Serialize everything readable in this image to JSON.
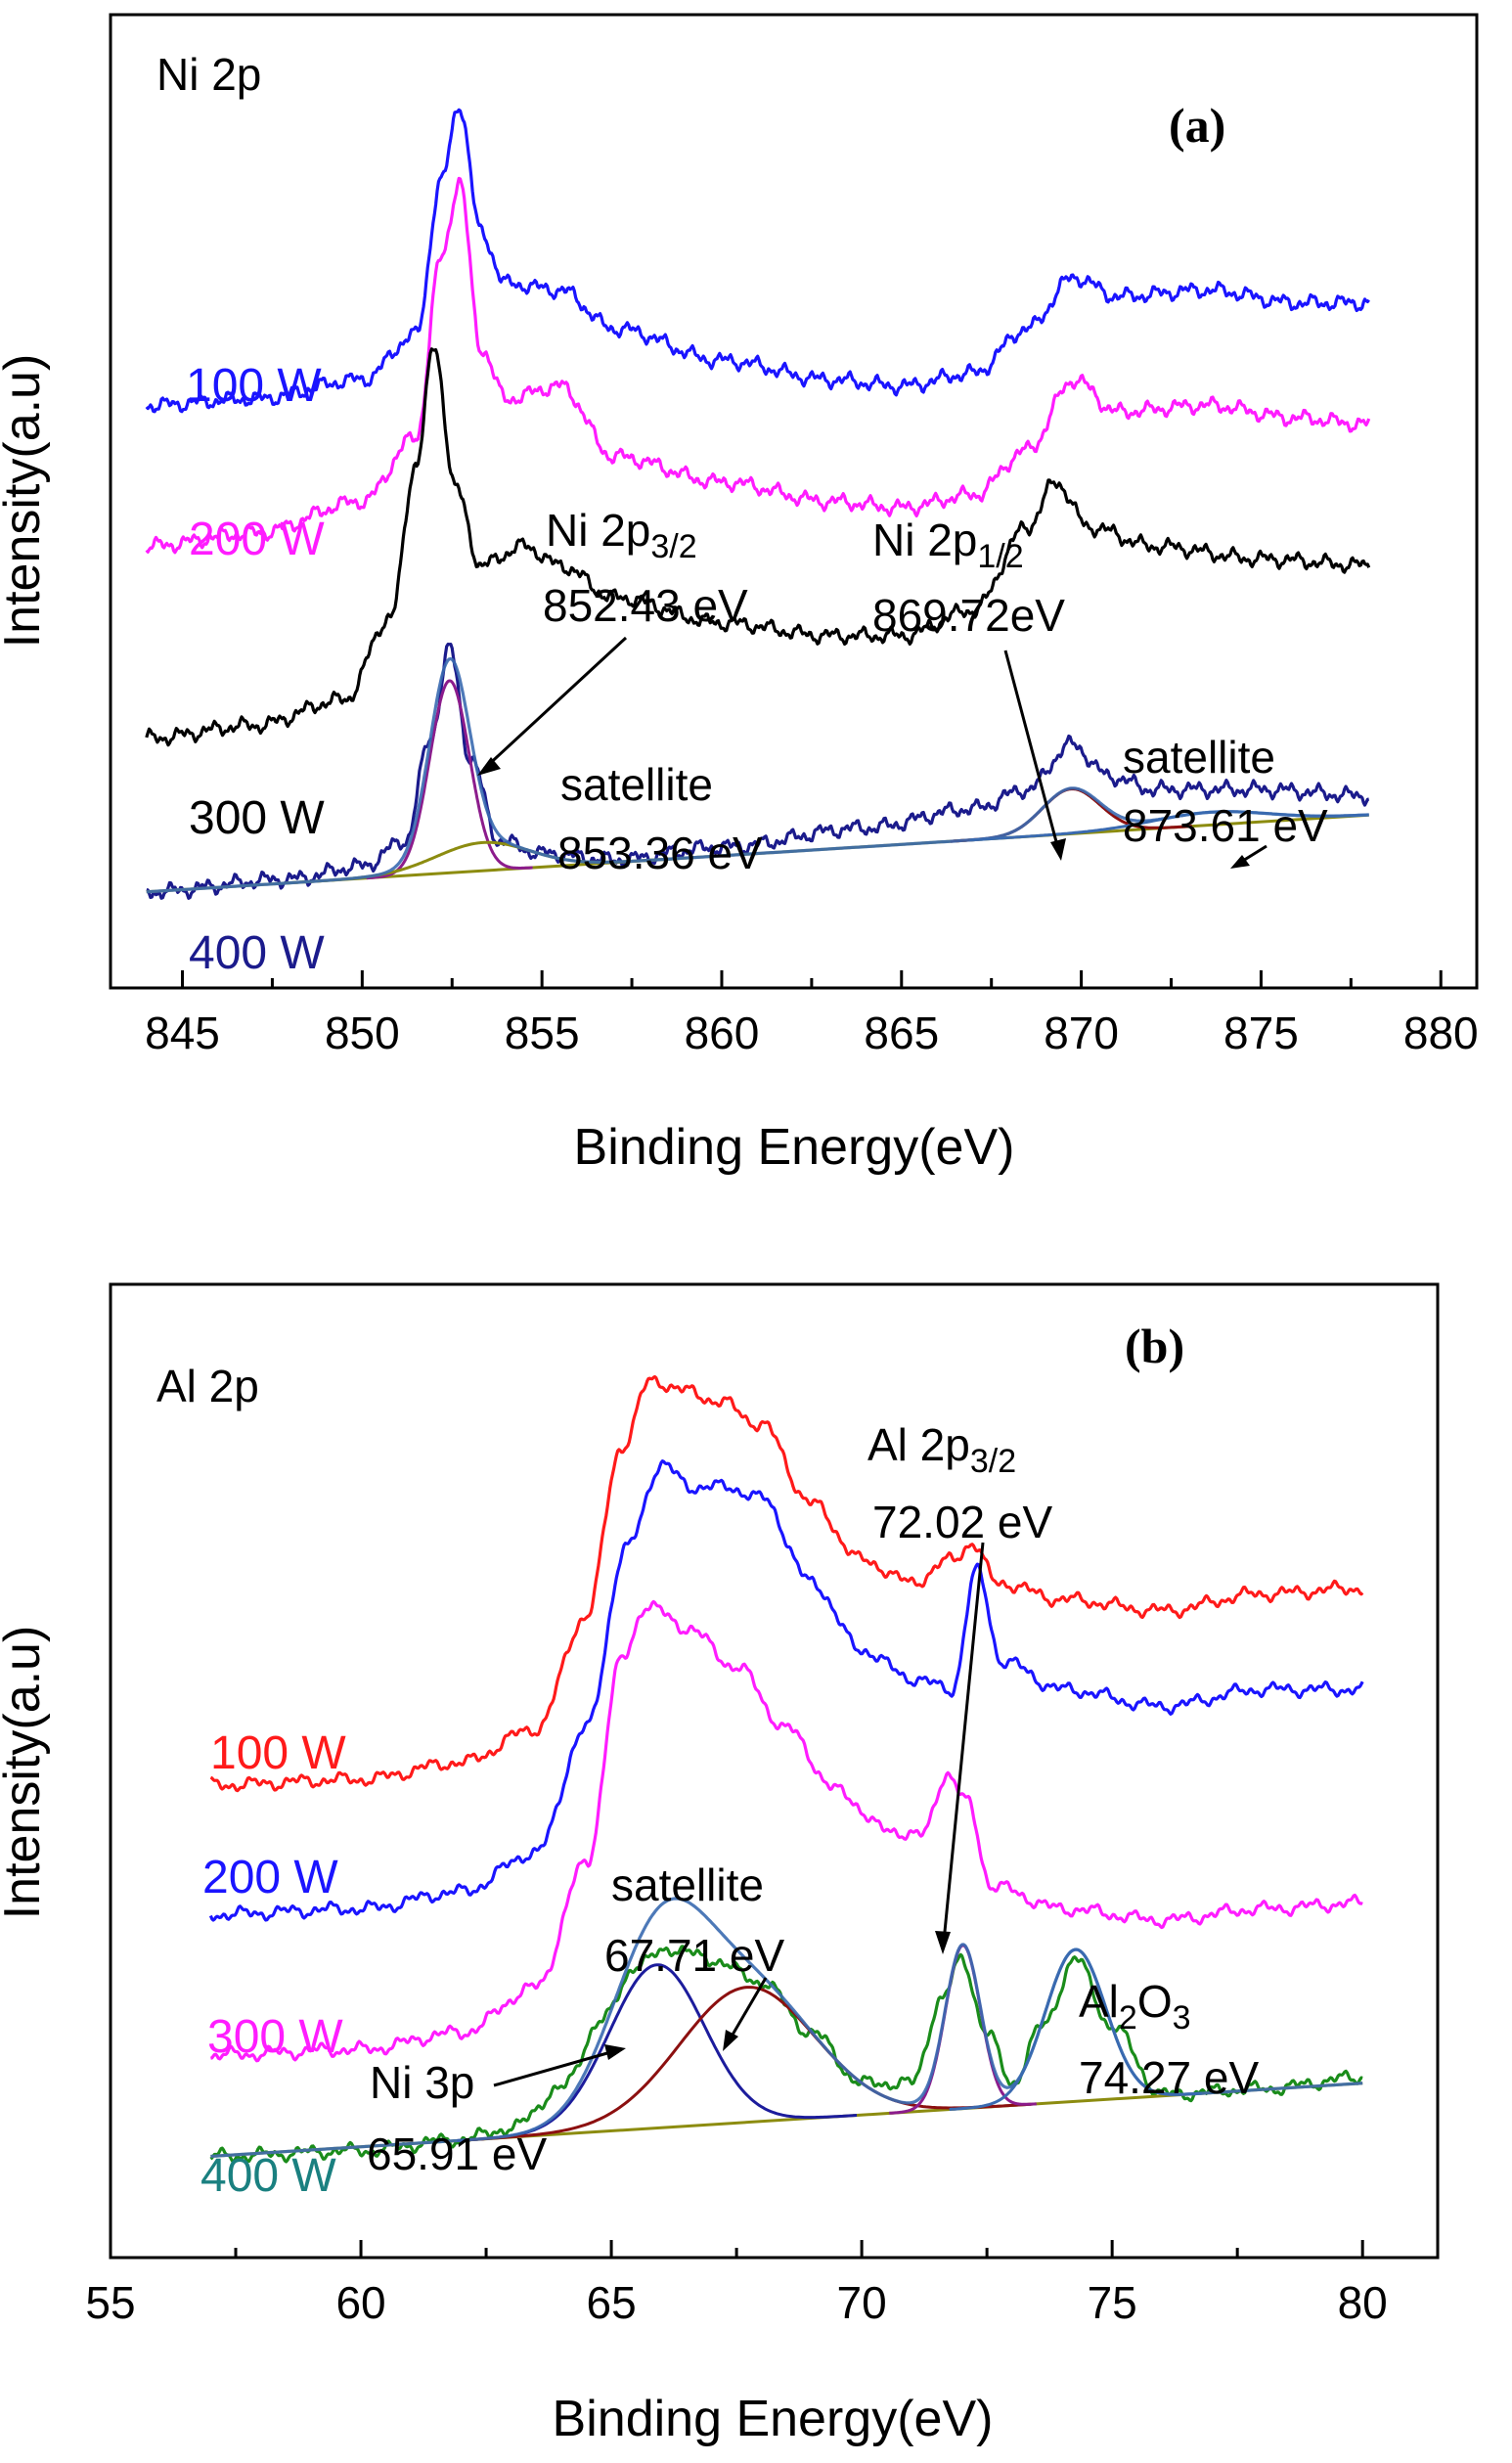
{
  "colors": {
    "s100": "#1a14ff",
    "s200": "#ff1cff",
    "s300": "#000000",
    "s400": "#1b1b8c",
    "red100": "#ff1a1a",
    "teal400": "#1a8080",
    "fitNavy": "#1c1c9c",
    "fitPurple": "#8c1c8c",
    "fitBrown": "#8c1010",
    "fitOlive": "#8c8c10",
    "fitSteel": "#3a6ab0",
    "fitGreen": "#1a8c1a"
  },
  "chart_data": [
    {
      "type": "line",
      "panel_label": "(a)",
      "corner_label": "Ni 2p",
      "xlabel": "Binding Energy(eV)",
      "ylabel": "Intensity(a.u)",
      "xlim": [
        843,
        881
      ],
      "xticks": [
        "845",
        "850",
        "855",
        "860",
        "865",
        "870",
        "875",
        "880"
      ],
      "series": [
        {
          "name": "100 W",
          "x": [
            844,
            847,
            850,
            851.5,
            852.2,
            852.7,
            853.3,
            854,
            855.5,
            857,
            860,
            863,
            865,
            867,
            868.5,
            869.8,
            871,
            873.5,
            876,
            878
          ],
          "y": [
            4.55,
            4.6,
            4.75,
            5.1,
            6.3,
            6.9,
            5.9,
            5.5,
            5.45,
            5.15,
            4.9,
            4.75,
            4.7,
            4.8,
            5.15,
            5.55,
            5.4,
            5.45,
            5.35,
            5.35
          ]
        },
        {
          "name": "200 W",
          "x": [
            844,
            847,
            850,
            851.5,
            852.2,
            852.7,
            853.3,
            854,
            855.5,
            857,
            860,
            863,
            865,
            867,
            868.5,
            869.8,
            871,
            873.5,
            876,
            878
          ],
          "y": [
            3.45,
            3.55,
            3.8,
            4.3,
            5.7,
            6.3,
            5.0,
            4.6,
            4.7,
            4.15,
            3.95,
            3.8,
            3.75,
            3.85,
            4.2,
            4.75,
            4.5,
            4.55,
            4.45,
            4.4
          ]
        },
        {
          "name": "300 W",
          "x": [
            844,
            847,
            849.5,
            850.8,
            851.5,
            852.0,
            852.6,
            853.3,
            854.5,
            855.5,
            857,
            860,
            863,
            865,
            867,
            868.5,
            869.3,
            870.2,
            872,
            875,
            878
          ],
          "y": [
            1.95,
            2.05,
            2.25,
            2.9,
            4.1,
            5.0,
            3.9,
            3.3,
            3.45,
            3.3,
            3.05,
            2.85,
            2.75,
            2.75,
            2.95,
            3.6,
            3.95,
            3.6,
            3.45,
            3.35,
            3.3
          ]
        },
        {
          "name": "400 W",
          "x": [
            844,
            848,
            850,
            851.2,
            851.9,
            852.43,
            853.0,
            853.8,
            855,
            857,
            860,
            864,
            867,
            868.5,
            869.72,
            870.8,
            872,
            875,
            878
          ],
          "y": [
            0.75,
            0.85,
            0.95,
            1.15,
            1.95,
            2.65,
            1.8,
            1.15,
            1.05,
            1.0,
            1.1,
            1.25,
            1.4,
            1.55,
            1.9,
            1.65,
            1.55,
            1.55,
            1.5
          ]
        }
      ],
      "annotations": [
        {
          "text": "Ni 2p",
          "sub": "3/2"
        },
        {
          "text": "852.43 eV"
        },
        {
          "text": "Ni 2p",
          "sub": "1/2"
        },
        {
          "text": "869.72eV"
        },
        {
          "text": "satellite"
        },
        {
          "text": "853.36 eV"
        },
        {
          "text": "satellite"
        },
        {
          "text": "873.61 eV"
        }
      ]
    },
    {
      "type": "line",
      "panel_label": "(b)",
      "corner_label": "Al 2p",
      "xlabel": "Binding Energy(eV)",
      "ylabel": "Intensity(a.u)",
      "xlim": [
        55,
        81.5
      ],
      "xticks": [
        "55",
        "60",
        "65",
        "70",
        "75",
        "80"
      ],
      "series": [
        {
          "name": "100 W",
          "x": [
            57,
            60,
            62,
            63.5,
            64.5,
            65.2,
            65.8,
            66.5,
            67.2,
            68.0,
            69.0,
            70.0,
            71.0,
            71.8,
            72.2,
            72.7,
            74,
            76,
            78,
            80
          ],
          "y": [
            3.5,
            3.55,
            3.7,
            4.0,
            5.0,
            6.5,
            7.1,
            7.0,
            6.9,
            6.7,
            6.0,
            5.5,
            5.3,
            5.5,
            5.65,
            5.3,
            5.15,
            5.05,
            5.2,
            5.25
          ]
        },
        {
          "name": "200 W",
          "x": [
            57,
            60,
            62,
            63.5,
            64.5,
            65.3,
            66.0,
            66.6,
            67.3,
            68.0,
            69.0,
            70.0,
            71.0,
            71.8,
            72.3,
            72.8,
            74,
            76,
            78,
            80
          ],
          "y": [
            2.35,
            2.4,
            2.55,
            2.9,
            4.0,
            5.6,
            6.35,
            6.15,
            6.15,
            6.05,
            5.3,
            4.7,
            4.45,
            4.35,
            5.4,
            4.6,
            4.35,
            4.2,
            4.35,
            4.35
          ]
        },
        {
          "name": "300 W",
          "x": [
            57,
            60,
            62,
            63.5,
            64.5,
            65.2,
            65.7,
            66.5,
            67.5,
            68.5,
            69.5,
            70.5,
            71.2,
            71.7,
            72.1,
            72.6,
            74,
            76,
            78,
            80
          ],
          "y": [
            1.1,
            1.15,
            1.3,
            1.7,
            2.8,
            4.6,
            5.1,
            4.9,
            4.55,
            4.0,
            3.45,
            3.1,
            3.05,
            3.6,
            3.35,
            2.6,
            2.4,
            2.3,
            2.4,
            2.45
          ]
        },
        {
          "name": "400 W",
          "x": [
            57,
            60,
            62,
            63,
            64,
            64.8,
            65.5,
            66.2,
            67.0,
            68.0,
            69.0,
            70.0,
            71.0,
            71.6,
            72.0,
            72.5,
            73.0,
            73.6,
            74.27,
            75.0,
            76,
            78,
            80
          ],
          "y": [
            0.2,
            0.25,
            0.35,
            0.45,
            0.8,
            1.4,
            1.9,
            2.05,
            1.95,
            1.75,
            1.3,
            0.85,
            0.85,
            1.6,
            1.95,
            1.3,
            0.85,
            1.35,
            1.95,
            1.35,
            0.75,
            0.8,
            0.9
          ]
        }
      ],
      "annotations": [
        {
          "text": "Al 2p",
          "sub": "3/2"
        },
        {
          "text": "72.02 eV"
        },
        {
          "text": "satellite"
        },
        {
          "text": "67.71 eV"
        },
        {
          "text": "Ni 3p"
        },
        {
          "text": "65.91 eV"
        },
        {
          "text": "Al",
          "sub": "2",
          "after": "O",
          "sub2": "3"
        },
        {
          "text": "74.27 eV"
        }
      ]
    }
  ]
}
